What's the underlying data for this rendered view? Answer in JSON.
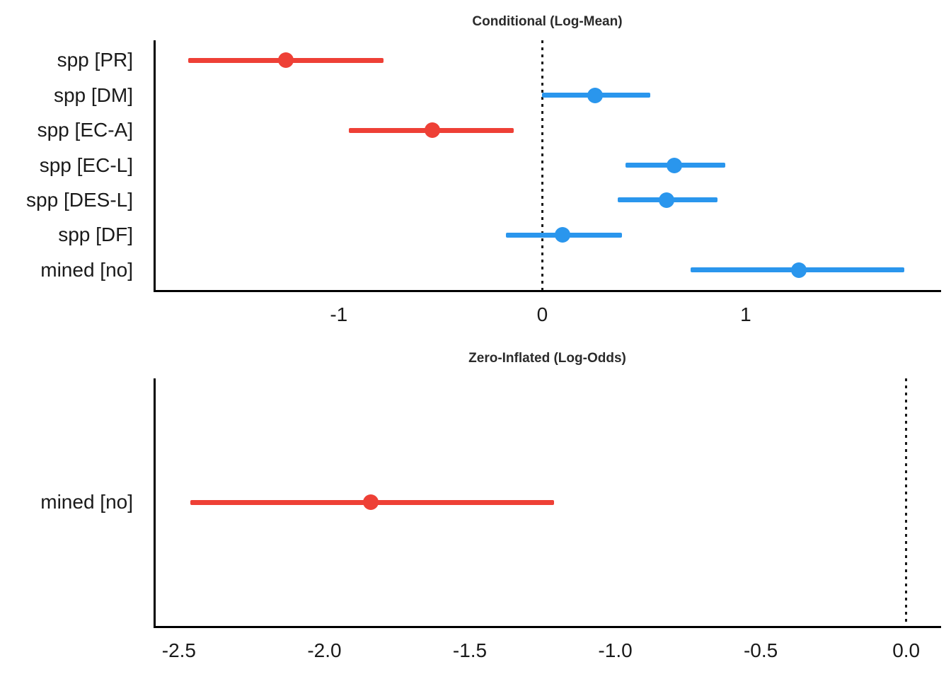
{
  "figure_colors": {
    "negative": "#ee4036",
    "positive": "#2a96ed",
    "axis_line": "#000000",
    "reference_line": "#1a1a1a",
    "tick_text": "#1a1a1a",
    "title_text": "#2b2b2b",
    "background": "#ffffff"
  },
  "chart_data": [
    {
      "type": "scatter",
      "subtype": "forest-coefficient-plot",
      "title": "Conditional (Log-Mean)",
      "orientation": "horizontal",
      "grid": false,
      "legend": false,
      "reference_line": 0,
      "xlim": [
        -1.9,
        1.96
      ],
      "xticks": [
        "-1",
        "0",
        "1"
      ],
      "xtick_values": [
        -1,
        0,
        1
      ],
      "categories": [
        "spp [PR]",
        "spp [DM]",
        "spp [EC-A]",
        "spp [EC-L]",
        "spp [DES-L]",
        "spp [DF]",
        "mined [no]"
      ],
      "estimates": [
        -1.26,
        0.26,
        -0.54,
        0.65,
        0.61,
        0.1,
        1.26
      ],
      "ci_low": [
        -1.74,
        0.0,
        -0.95,
        0.41,
        0.37,
        -0.18,
        0.73
      ],
      "ci_high": [
        -0.78,
        0.53,
        -0.14,
        0.9,
        0.86,
        0.39,
        1.78
      ],
      "point_colors": [
        "#ee4036",
        "#2a96ed",
        "#ee4036",
        "#2a96ed",
        "#2a96ed",
        "#2a96ed",
        "#2a96ed"
      ]
    },
    {
      "type": "scatter",
      "subtype": "forest-coefficient-plot",
      "title": "Zero-Inflated (Log-Odds)",
      "orientation": "horizontal",
      "grid": false,
      "legend": false,
      "reference_line": 0,
      "xlim": [
        -2.58,
        0.12
      ],
      "xticks": [
        "-2.5",
        "-2.0",
        "-1.5",
        "-1.0",
        "-0.5",
        "0.0"
      ],
      "xtick_values": [
        -2.5,
        -2.0,
        -1.5,
        -1.0,
        -0.5,
        0.0
      ],
      "categories": [
        "mined [no]"
      ],
      "estimates": [
        -1.84
      ],
      "ci_low": [
        -2.46
      ],
      "ci_high": [
        -1.21
      ],
      "point_colors": [
        "#ee4036"
      ]
    }
  ]
}
